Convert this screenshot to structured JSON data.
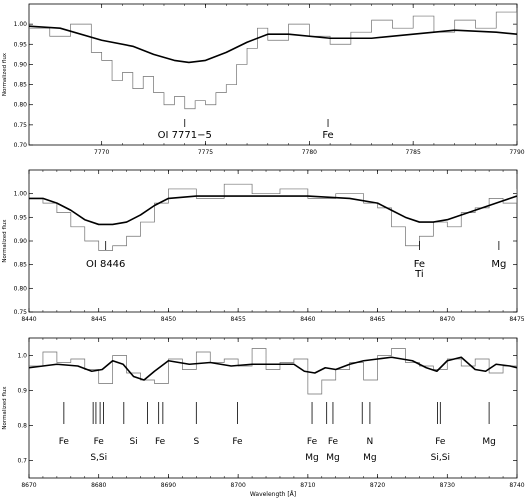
{
  "chart_data": [
    {
      "type": "line",
      "ylabel": "Normalized flux",
      "xlim": [
        7766.5,
        7790
      ],
      "ylim": [
        0.7,
        1.05
      ],
      "xticks": [
        7770,
        7775,
        7780,
        7785,
        7790
      ],
      "yticks": [
        0.7,
        0.75,
        0.8,
        0.85,
        0.9,
        0.95,
        1.0
      ],
      "series": [
        {
          "style": "step-thin-gray",
          "x": [
            7766.5,
            7767.5,
            7768.5,
            7769.5,
            7770,
            7770.5,
            7771,
            7771.5,
            7772,
            7772.5,
            7773,
            7773.5,
            7774,
            7774.5,
            7775,
            7775.5,
            7776,
            7776.5,
            7777,
            7777.5,
            7778,
            7779,
            7780,
            7781,
            7782,
            7783,
            7784,
            7785,
            7786,
            7787,
            7788,
            7789,
            7790
          ],
          "y": [
            0.99,
            0.97,
            1.0,
            0.93,
            0.91,
            0.86,
            0.88,
            0.84,
            0.87,
            0.83,
            0.8,
            0.82,
            0.79,
            0.81,
            0.8,
            0.83,
            0.85,
            0.9,
            0.94,
            0.99,
            0.96,
            1.0,
            0.97,
            0.95,
            0.98,
            1.01,
            0.99,
            1.02,
            0.98,
            1.01,
            0.99,
            1.03,
            0.98
          ]
        },
        {
          "style": "smooth-thick-black",
          "x": [
            7766.5,
            7768,
            7770,
            7771.5,
            7772.5,
            7773.5,
            7774.2,
            7775,
            7776,
            7777,
            7778,
            7779,
            7781,
            7783,
            7785,
            7787,
            7789,
            7790
          ],
          "y": [
            0.995,
            0.99,
            0.96,
            0.945,
            0.925,
            0.91,
            0.905,
            0.91,
            0.93,
            0.955,
            0.975,
            0.975,
            0.965,
            0.965,
            0.975,
            0.985,
            0.98,
            0.975
          ]
        }
      ],
      "annotations": [
        {
          "label": "OI 7771−5",
          "x": 7774.0
        },
        {
          "label": "Fe",
          "x": 7780.9
        }
      ]
    },
    {
      "type": "line",
      "ylabel": "Normalized flux",
      "xlim": [
        8440,
        8475
      ],
      "ylim": [
        0.75,
        1.05
      ],
      "xticks": [
        8440,
        8445,
        8450,
        8455,
        8460,
        8465,
        8470,
        8475
      ],
      "yticks": [
        0.75,
        0.8,
        0.85,
        0.9,
        0.95,
        1.0
      ],
      "series": [
        {
          "style": "step-thin-gray",
          "x": [
            8440,
            8441,
            8442,
            8443,
            8444,
            8445,
            8446,
            8447,
            8448,
            8449,
            8450,
            8452,
            8454,
            8456,
            8458,
            8460,
            8462,
            8464,
            8465,
            8466,
            8467,
            8468,
            8469,
            8470,
            8471,
            8472,
            8473,
            8474,
            8475
          ],
          "y": [
            0.99,
            0.98,
            0.96,
            0.93,
            0.9,
            0.88,
            0.89,
            0.91,
            0.94,
            0.98,
            1.01,
            0.99,
            1.02,
            1.0,
            1.01,
            0.99,
            1.0,
            0.98,
            0.97,
            0.93,
            0.89,
            0.91,
            0.94,
            0.93,
            0.96,
            0.97,
            0.99,
            0.98,
            1.01
          ]
        },
        {
          "style": "smooth-thick-black",
          "x": [
            8440,
            8441,
            8442,
            8443,
            8444,
            8445,
            8446,
            8447,
            8448,
            8449,
            8450,
            8452,
            8455,
            8460,
            8463,
            8465,
            8466,
            8467,
            8468,
            8469,
            8470,
            8471,
            8472,
            8473,
            8474,
            8475
          ],
          "y": [
            0.99,
            0.99,
            0.98,
            0.965,
            0.945,
            0.935,
            0.935,
            0.94,
            0.955,
            0.975,
            0.99,
            0.995,
            0.995,
            0.995,
            0.99,
            0.98,
            0.965,
            0.95,
            0.94,
            0.94,
            0.945,
            0.955,
            0.965,
            0.975,
            0.985,
            0.995
          ]
        }
      ],
      "annotations": [
        {
          "label": "OI 8446",
          "x": 8445.5
        },
        {
          "label": "Fe",
          "sublabel": "Ti",
          "x": 8468.0
        },
        {
          "label": "Mg",
          "x": 8473.7
        }
      ]
    },
    {
      "type": "line",
      "xlabel": "Wavelength [Å]",
      "ylabel": "Normalized flux",
      "xlim": [
        8670,
        8740
      ],
      "ylim": [
        0.65,
        1.05
      ],
      "xticks": [
        8670,
        8680,
        8690,
        8700,
        8710,
        8720,
        8730,
        8740
      ],
      "yticks": [
        0.7,
        0.8,
        0.9,
        1.0
      ],
      "series": [
        {
          "style": "step-thin-gray",
          "x": [
            8670,
            8672,
            8674,
            8676,
            8678,
            8680,
            8682,
            8684,
            8686,
            8688,
            8690,
            8692,
            8694,
            8696,
            8698,
            8700,
            8702,
            8704,
            8706,
            8708,
            8710,
            8712,
            8714,
            8716,
            8718,
            8720,
            8722,
            8724,
            8726,
            8728,
            8730,
            8732,
            8734,
            8736,
            8738,
            8740
          ],
          "y": [
            0.97,
            1.01,
            0.98,
            0.99,
            0.96,
            0.92,
            1.0,
            0.95,
            0.93,
            0.92,
            0.99,
            0.96,
            1.01,
            0.98,
            0.99,
            0.97,
            1.02,
            0.96,
            0.98,
            0.99,
            0.89,
            0.93,
            0.96,
            0.98,
            0.93,
            1.0,
            1.02,
            0.98,
            0.97,
            0.96,
            0.99,
            0.97,
            0.99,
            0.95,
            0.97,
            0.99
          ]
        },
        {
          "style": "smooth-thick-black",
          "x": [
            8670,
            8674,
            8677,
            8679,
            8680.5,
            8682,
            8683.5,
            8685,
            8686.5,
            8688,
            8690,
            8693,
            8696,
            8699,
            8702,
            8705,
            8708,
            8709.5,
            8711,
            8712.5,
            8714,
            8716,
            8718,
            8720,
            8722,
            8725,
            8727,
            8728.5,
            8730,
            8732,
            8734,
            8735.5,
            8737,
            8739,
            8740
          ],
          "y": [
            0.965,
            0.975,
            0.97,
            0.955,
            0.96,
            0.985,
            0.975,
            0.94,
            0.93,
            0.955,
            0.985,
            0.975,
            0.98,
            0.97,
            0.975,
            0.975,
            0.975,
            0.955,
            0.95,
            0.965,
            0.96,
            0.975,
            0.985,
            0.99,
            0.995,
            0.985,
            0.965,
            0.955,
            0.985,
            0.995,
            0.96,
            0.955,
            0.975,
            0.97,
            0.965
          ]
        }
      ],
      "line_marks": [
        8675,
        8679.2,
        8679.6,
        8680.2,
        8680.7,
        8683.6,
        8687.0,
        8688.6,
        8689.2,
        8694.0,
        8699.9,
        8710.6,
        8712.7,
        8713.6,
        8717.8,
        8718.9,
        8728.6,
        8729.0,
        8736.0
      ],
      "annotations": [
        {
          "label": "Fe",
          "x": 8675.0
        },
        {
          "label": "Fe",
          "sublabel": "S,Si",
          "x": 8680.0
        },
        {
          "label": "Si",
          "x": 8685.0
        },
        {
          "label": "Fe",
          "x": 8688.8
        },
        {
          "label": "S",
          "x": 8694.0
        },
        {
          "label": "Fe",
          "x": 8699.9
        },
        {
          "label": "Fe",
          "sublabel": "Mg",
          "x": 8710.6
        },
        {
          "label": "Fe",
          "sublabel": "Mg",
          "x": 8713.6
        },
        {
          "label": "N",
          "sublabel": "Mg",
          "x": 8718.9
        },
        {
          "label": "Fe",
          "sublabel": "Si,Si",
          "x": 8729.0
        },
        {
          "label": "Mg",
          "x": 8736.0
        }
      ]
    }
  ]
}
